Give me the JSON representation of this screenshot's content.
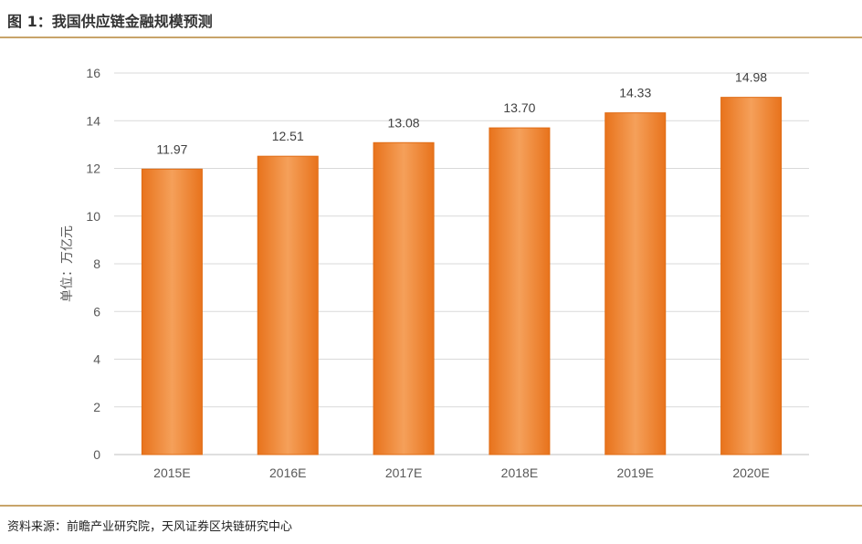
{
  "header": {
    "title": "图 1：我国供应链金融规模预测"
  },
  "footer": {
    "source": "资料来源：前瞻产业研究院，天风证券区块链研究中心"
  },
  "chart_data": {
    "type": "bar",
    "categories": [
      "2015E",
      "2016E",
      "2017E",
      "2018E",
      "2019E",
      "2020E"
    ],
    "values": [
      11.97,
      12.51,
      13.08,
      13.7,
      14.33,
      14.98
    ],
    "value_labels": [
      "11.97",
      "12.51",
      "13.08",
      "13.70",
      "14.33",
      "14.98"
    ],
    "ylabel": "单位：万亿元",
    "xlabel": "",
    "ylim": [
      0,
      16
    ],
    "yticks": [
      "0",
      "2",
      "4",
      "6",
      "8",
      "10",
      "12",
      "14",
      "16"
    ],
    "grid": true,
    "bar_color": "#f08a36"
  }
}
